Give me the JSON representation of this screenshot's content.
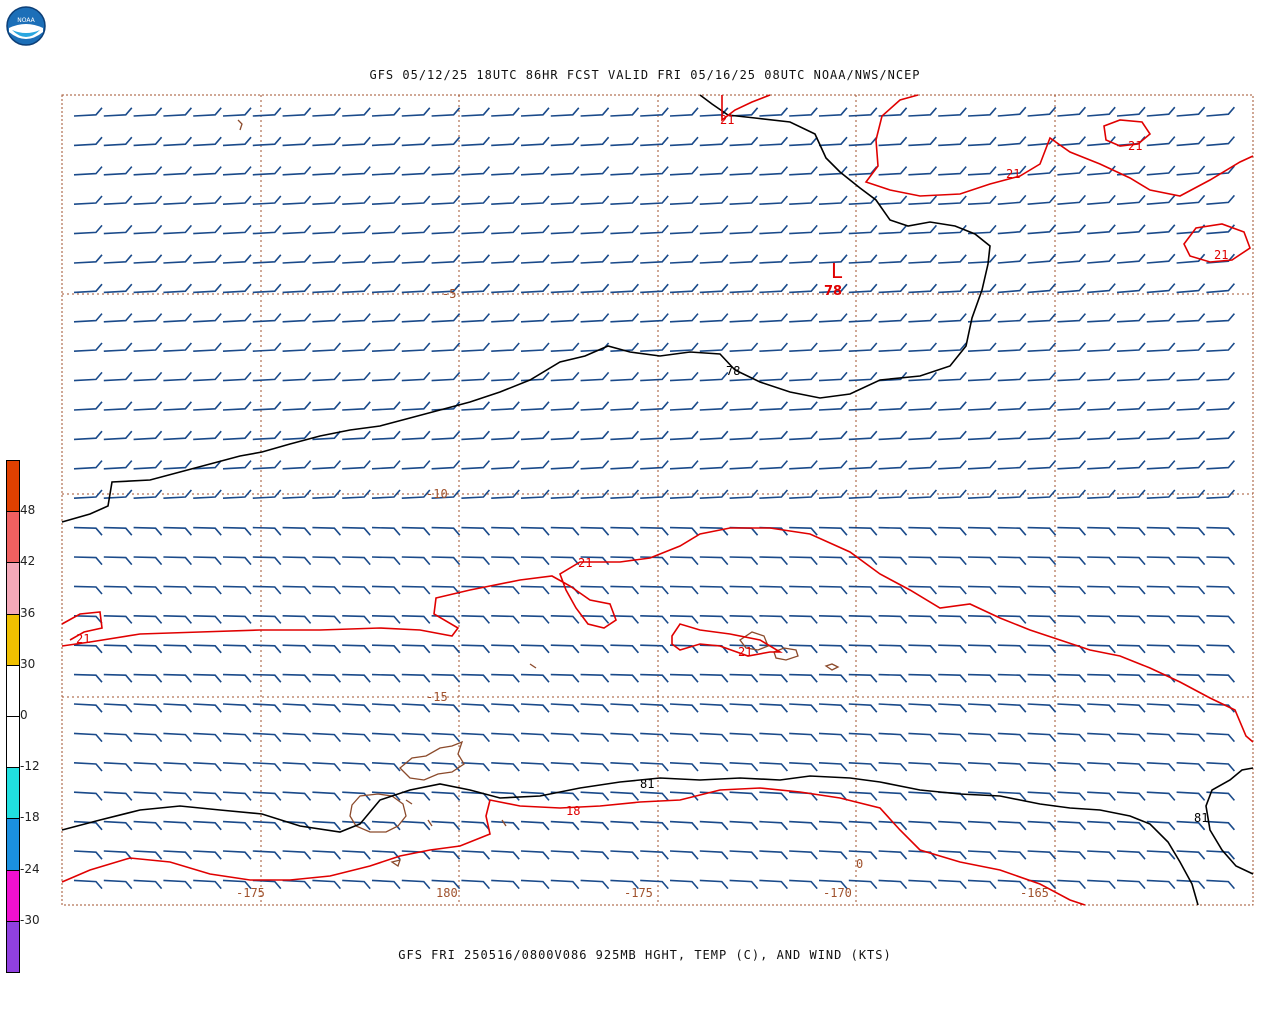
{
  "header": {
    "logo_text": "NOAA",
    "title": "GFS 05/12/25 18UTC 86HR FCST VALID FRI 05/16/25 08UTC NOAA/NWS/NCEP"
  },
  "footer": {
    "caption": "GFS FRI 250516/0800V086 925MB HGHT, TEMP (C), AND WIND (KTS)"
  },
  "colors": {
    "barb": "#1a4a8a",
    "height_contour": "#000000",
    "temp_contour": "#e00000",
    "grid": "#a0522d",
    "coast": "#8b4a2b"
  },
  "map": {
    "grid_latitude_labels": [
      "-5",
      "-10",
      "-15"
    ],
    "grid_longitude_labels": [
      "-175",
      "180",
      "-175",
      "-170",
      "-165"
    ],
    "height_contour_labels": [
      "78",
      "81",
      "81"
    ],
    "temp_contour_labels": [
      "21",
      "21",
      "21",
      "21",
      "21",
      "21",
      "18",
      "0"
    ],
    "low_center": {
      "symbol": "L",
      "value": "78"
    }
  },
  "colorbar": {
    "segments": [
      {
        "color": "#e04000"
      },
      {
        "color": "#f06060"
      },
      {
        "color": "#f4a8b8"
      },
      {
        "color": "#f0c000"
      },
      {
        "color": "#ffffff"
      },
      {
        "color": "#ffffff"
      },
      {
        "color": "#20e0e0"
      },
      {
        "color": "#1a90e0"
      },
      {
        "color": "#f010d0"
      },
      {
        "color": "#9040e0"
      }
    ],
    "labels": [
      "48",
      "42",
      "36",
      "30",
      "0",
      "-12",
      "-18",
      "-24",
      "-30"
    ]
  }
}
